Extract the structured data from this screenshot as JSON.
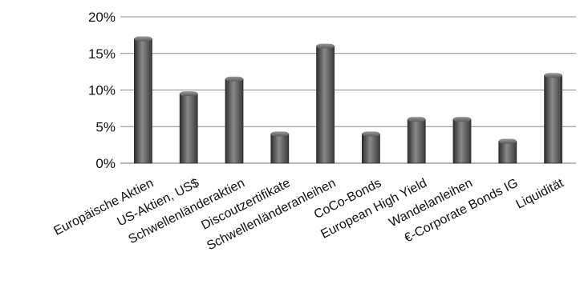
{
  "chart_data": {
    "type": "bar",
    "categories": [
      "Europäische Aktien",
      "US-Aktien, US$",
      "Schwellenländeraktien",
      "Discoutzertifikate",
      "Schwellenländeranleihen",
      "CoCo-Bonds",
      "European High Yield",
      "Wandelanleihen",
      "€-Corporate Bonds IG",
      "Liquidität"
    ],
    "values": [
      17,
      9.5,
      11.5,
      4,
      16,
      4,
      6,
      6,
      3,
      12
    ],
    "yticks": [
      "0%",
      "5%",
      "10%",
      "15%",
      "20%"
    ],
    "ylim": [
      0,
      20
    ],
    "title": "",
    "xlabel": "",
    "ylabel": "",
    "grid": true,
    "bar_color": "#555555"
  }
}
